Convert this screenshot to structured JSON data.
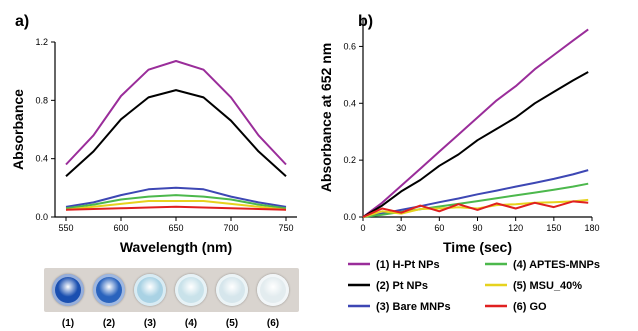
{
  "panel_labels": {
    "a": "a)",
    "b": "b)"
  },
  "chart_data": [
    {
      "type": "line",
      "panel": "a)",
      "xlabel": "Wavelength (nm)",
      "ylabel": "Absorbance",
      "xlim": [
        540,
        760
      ],
      "ylim": [
        0,
        1.2
      ],
      "xticks": [
        550,
        600,
        650,
        700,
        750
      ],
      "yticks": [
        0.0,
        0.4,
        0.8,
        1.2
      ],
      "x": [
        550,
        575,
        600,
        625,
        650,
        675,
        700,
        725,
        750
      ],
      "series": [
        {
          "name": "(1) H-Pt NPs",
          "color": "#9a2d9a",
          "values": [
            0.36,
            0.56,
            0.83,
            1.01,
            1.07,
            1.01,
            0.82,
            0.56,
            0.36
          ]
        },
        {
          "name": "(2) Pt NPs",
          "color": "#000000",
          "values": [
            0.28,
            0.45,
            0.67,
            0.82,
            0.87,
            0.82,
            0.66,
            0.45,
            0.28
          ]
        },
        {
          "name": "(3) Bare MNPs",
          "color": "#3d47b4",
          "values": [
            0.07,
            0.1,
            0.15,
            0.19,
            0.2,
            0.19,
            0.14,
            0.1,
            0.07
          ]
        },
        {
          "name": "(4) APTES-MNPs",
          "color": "#4cb84c",
          "values": [
            0.06,
            0.085,
            0.12,
            0.14,
            0.15,
            0.14,
            0.12,
            0.085,
            0.06
          ]
        },
        {
          "name": "(5) MSU_40%",
          "color": "#e6d21e",
          "values": [
            0.05,
            0.07,
            0.09,
            0.11,
            0.11,
            0.11,
            0.09,
            0.07,
            0.05
          ]
        },
        {
          "name": "(6) GO",
          "color": "#e02020",
          "values": [
            0.05,
            0.055,
            0.06,
            0.065,
            0.07,
            0.065,
            0.06,
            0.055,
            0.05
          ]
        }
      ]
    },
    {
      "type": "line",
      "panel": "b)",
      "xlabel": "Time (sec)",
      "ylabel": "Absorbance at 652 nm",
      "xlim": [
        0,
        180
      ],
      "ylim": [
        0,
        0.7
      ],
      "xticks": [
        0,
        30,
        60,
        90,
        120,
        150,
        180
      ],
      "yticks": [
        0.0,
        0.2,
        0.4,
        0.6
      ],
      "x": [
        0,
        15,
        30,
        45,
        60,
        75,
        90,
        105,
        120,
        135,
        150,
        165,
        177
      ],
      "series": [
        {
          "name": "(1) H-Pt NPs",
          "color": "#9a2d9a",
          "values": [
            0,
            0.05,
            0.11,
            0.17,
            0.23,
            0.29,
            0.35,
            0.41,
            0.46,
            0.52,
            0.57,
            0.62,
            0.66
          ]
        },
        {
          "name": "(2) Pt NPs",
          "color": "#000000",
          "values": [
            0,
            0.04,
            0.09,
            0.13,
            0.18,
            0.22,
            0.27,
            0.31,
            0.35,
            0.4,
            0.44,
            0.48,
            0.51
          ]
        },
        {
          "name": "(3) Bare MNPs",
          "color": "#3d47b4",
          "values": [
            0,
            0.012,
            0.025,
            0.038,
            0.052,
            0.065,
            0.08,
            0.093,
            0.107,
            0.12,
            0.134,
            0.15,
            0.165
          ]
        },
        {
          "name": "(4) APTES-MNPs",
          "color": "#4cb84c",
          "values": [
            0,
            0.008,
            0.018,
            0.027,
            0.037,
            0.046,
            0.056,
            0.066,
            0.076,
            0.086,
            0.096,
            0.107,
            0.117
          ]
        },
        {
          "name": "(5) MSU_40%",
          "color": "#e6d21e",
          "values": [
            0,
            0.02,
            0.012,
            0.028,
            0.03,
            0.034,
            0.03,
            0.042,
            0.045,
            0.05,
            0.052,
            0.055,
            0.06
          ]
        },
        {
          "name": "(6) GO",
          "color": "#e02020",
          "values": [
            0,
            0.03,
            0.015,
            0.04,
            0.02,
            0.045,
            0.025,
            0.048,
            0.03,
            0.05,
            0.035,
            0.055,
            0.05
          ]
        }
      ]
    }
  ],
  "legend": [
    {
      "label": "(1) H-Pt NPs",
      "color": "#9a2d9a"
    },
    {
      "label": "(2) Pt NPs",
      "color": "#000000"
    },
    {
      "label": "(3) Bare MNPs",
      "color": "#3d47b4"
    },
    {
      "label": "(4) APTES-MNPs",
      "color": "#4cb84c"
    },
    {
      "label": "(5) MSU_40%",
      "color": "#e6d21e"
    },
    {
      "label": "(6) GO",
      "color": "#e02020"
    }
  ],
  "photo": {
    "labels": [
      "(1)",
      "(2)",
      "(3)",
      "(4)",
      "(5)",
      "(6)"
    ],
    "well_colors": [
      "#1a4fb0",
      "#2a63bd",
      "#a9d2e4",
      "#c9e2ea",
      "#d6e6ec",
      "#e3ecef"
    ]
  }
}
